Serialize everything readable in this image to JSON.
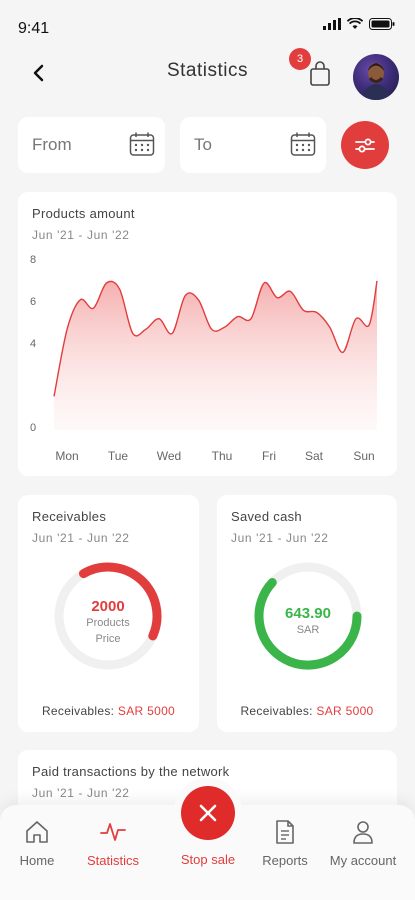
{
  "status": {
    "time": "9:41"
  },
  "header": {
    "title": "Statistics",
    "cart_count": "3"
  },
  "filters": {
    "from_label": "From",
    "to_label": "To"
  },
  "products_chart": {
    "title": "Products amount",
    "subtitle": "Jun '21 - Jun '22"
  },
  "chart_data": {
    "type": "area",
    "title": "Products amount",
    "subtitle": "Jun '21 - Jun '22",
    "categories": [
      "Mon",
      "Tue",
      "Wed",
      "Thu",
      "Fri",
      "Sat",
      "Sun"
    ],
    "x": [
      0,
      0.25,
      0.5,
      0.75,
      1,
      1.25,
      1.5,
      1.75,
      2,
      2.25,
      2.5,
      2.75,
      3,
      3.25,
      3.5,
      3.75,
      4,
      4.25,
      4.5,
      4.75,
      5,
      5.25,
      5.5,
      5.75,
      6,
      6.15
    ],
    "values": [
      1.6,
      4.8,
      6.2,
      5.8,
      7.0,
      6.7,
      4.6,
      4.8,
      5.3,
      4.6,
      6.4,
      6.2,
      4.8,
      4.9,
      5.4,
      5.3,
      7.0,
      6.3,
      6.6,
      5.7,
      5.6,
      4.9,
      3.7,
      5.3,
      5.0,
      7.1
    ],
    "yticks": [
      "0",
      "4",
      "6",
      "8"
    ],
    "ylim": [
      0,
      8
    ],
    "fill_color": "#f4a6a6",
    "line_color": "#e23d3d"
  },
  "receivables": {
    "title": "Receivables",
    "subtitle": "Jun '21 - Jun '22",
    "value": "2000",
    "line1": "Products",
    "line2": "Price",
    "progress": 0.4,
    "foot_label": "Receivables:",
    "foot_value": "SAR 5000",
    "color": "#e23d3d"
  },
  "saved_cash": {
    "title": "Saved cash",
    "subtitle": "Jun '21 - Jun '22",
    "value": "643.90",
    "unit": "SAR",
    "progress": 0.62,
    "foot_label": "Receivables:",
    "foot_value": "SAR 5000",
    "color": "#3bb54a"
  },
  "transactions": {
    "title": "Paid transactions by the network",
    "subtitle": "Jun '21 - Jun '22"
  },
  "nav": {
    "home": "Home",
    "statistics": "Statistics",
    "stop_sale": "Stop sale",
    "reports": "Reports",
    "account": "My account"
  },
  "colors": {
    "accent": "#e23d3d",
    "success": "#3bb54a",
    "background": "#f5f5f5"
  }
}
